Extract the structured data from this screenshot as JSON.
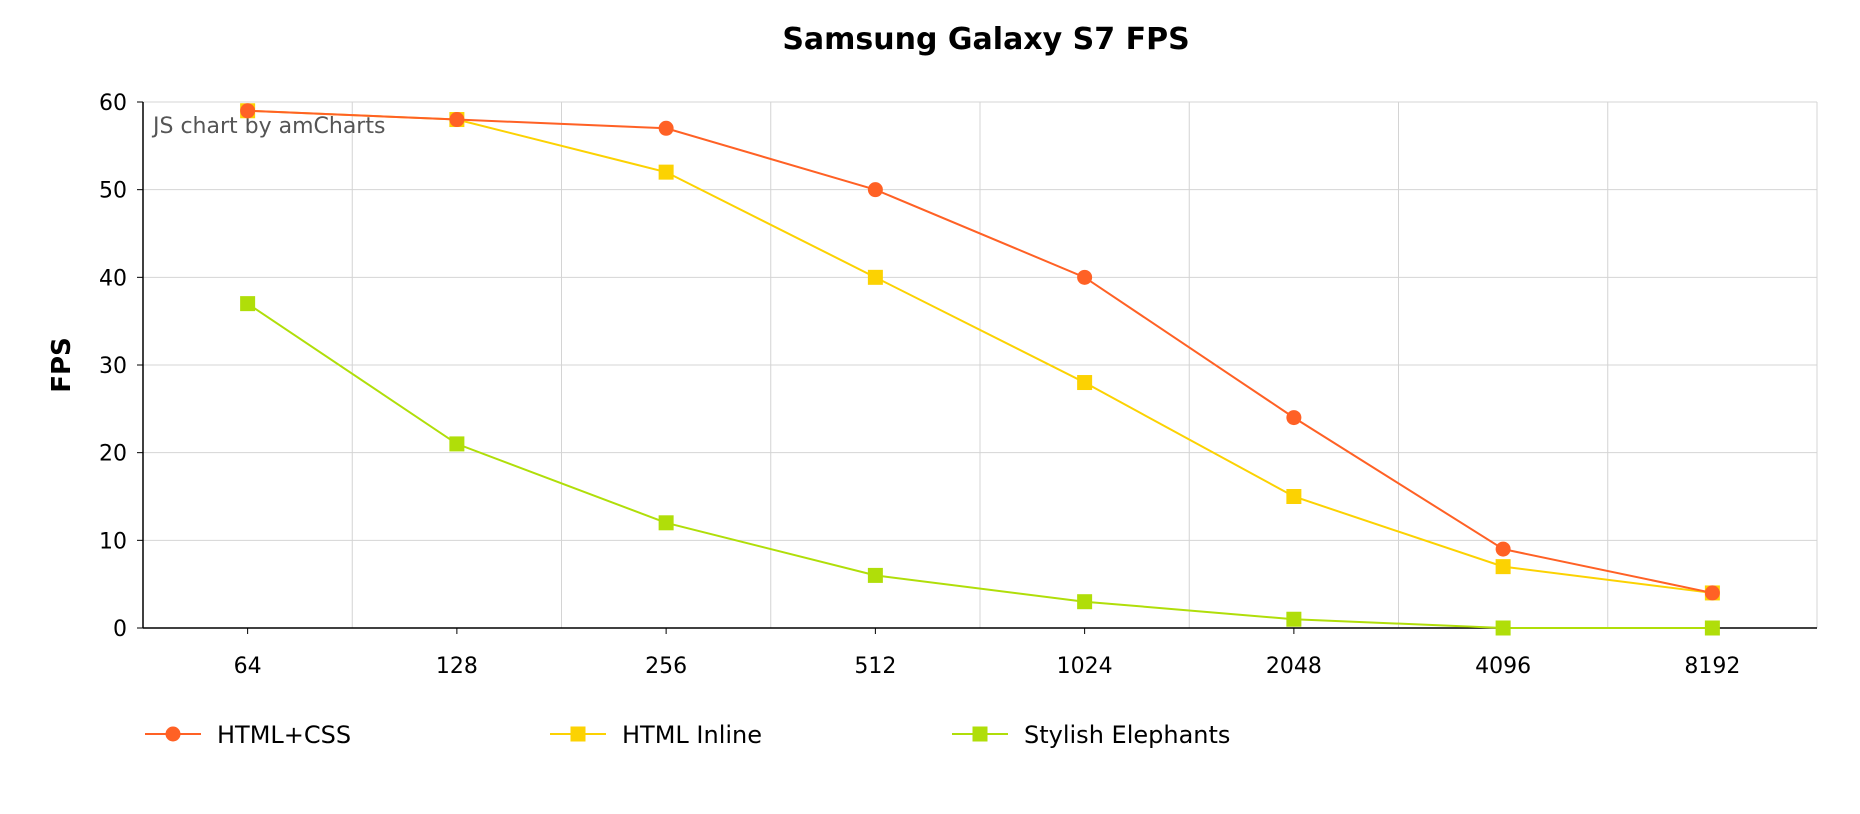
{
  "chart_data": {
    "type": "line",
    "title": "Samsung Galaxy S7 FPS",
    "xlabel": "",
    "ylabel": "FPS",
    "credit": "JS chart by amCharts",
    "categories": [
      "64",
      "128",
      "256",
      "512",
      "1024",
      "2048",
      "4096",
      "8192"
    ],
    "ylim": [
      0,
      60
    ],
    "yticks": [
      0,
      10,
      20,
      30,
      40,
      50,
      60
    ],
    "grid": true,
    "legend_position": "bottom-left",
    "series": [
      {
        "name": "HTML+CSS",
        "marker": "circle",
        "color": "#ff6125",
        "values": [
          59,
          58,
          57,
          50,
          40,
          24,
          9,
          4
        ]
      },
      {
        "name": "HTML Inline",
        "marker": "square",
        "color": "#fcd202",
        "values": [
          59,
          58,
          52,
          40,
          28,
          15,
          7,
          4
        ]
      },
      {
        "name": "Stylish Elephants",
        "marker": "square",
        "color": "#b0de09",
        "values": [
          37,
          21,
          12,
          6,
          3,
          1,
          0,
          0
        ]
      }
    ]
  }
}
